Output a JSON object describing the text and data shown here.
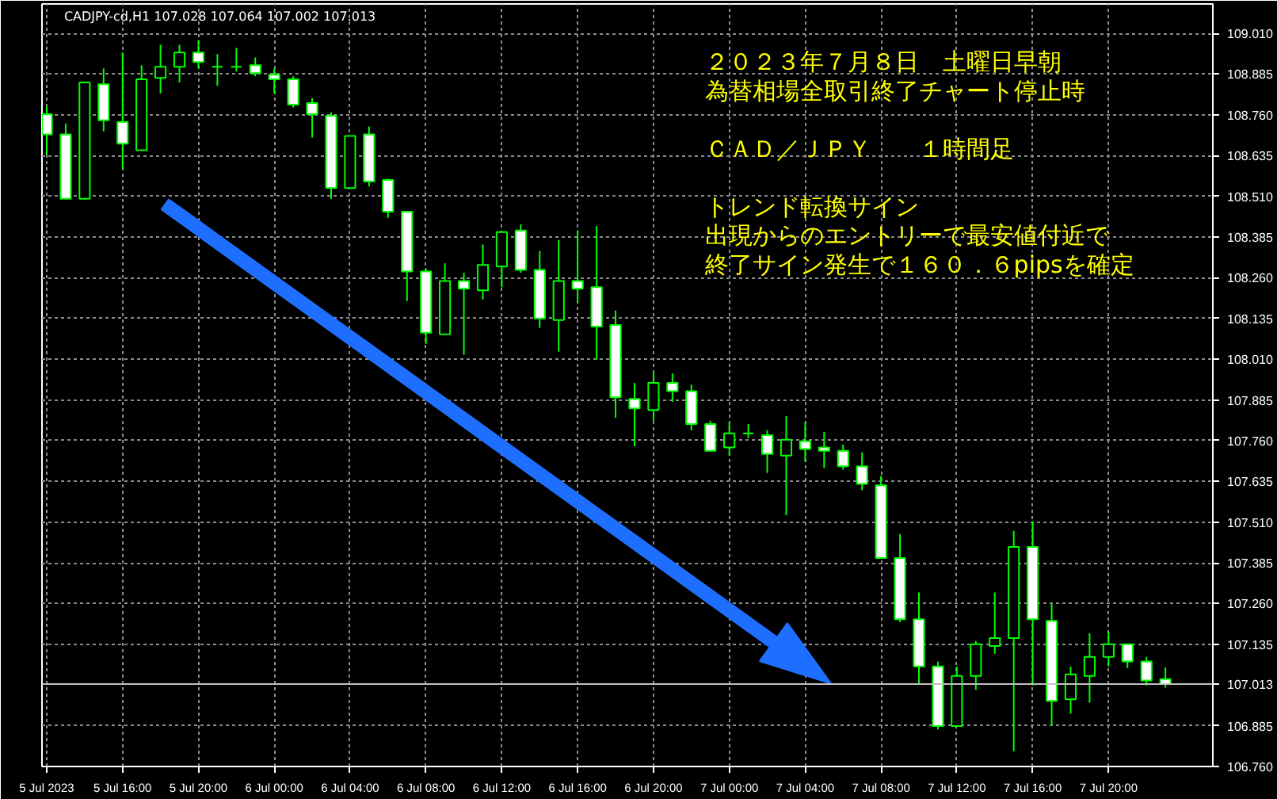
{
  "chart_data": {
    "type": "candlestick",
    "title": "CADJPY-cd,H1  107.028 107.064 107.002 107.013",
    "color": "#00ff00",
    "x": [
      "2023-07-05T12:00",
      "2023-07-05T13:00",
      "2023-07-05T14:00",
      "2023-07-05T15:00",
      "2023-07-05T16:00",
      "2023-07-05T17:00",
      "2023-07-05T18:00",
      "2023-07-05T19:00",
      "2023-07-05T20:00",
      "2023-07-05T21:00",
      "2023-07-05T22:00",
      "2023-07-05T23:00",
      "2023-07-06T00:00",
      "2023-07-06T01:00",
      "2023-07-06T02:00",
      "2023-07-06T03:00",
      "2023-07-06T04:00",
      "2023-07-06T05:00",
      "2023-07-06T06:00",
      "2023-07-06T07:00",
      "2023-07-06T08:00",
      "2023-07-06T09:00",
      "2023-07-06T10:00",
      "2023-07-06T11:00",
      "2023-07-06T12:00",
      "2023-07-06T13:00",
      "2023-07-06T14:00",
      "2023-07-06T15:00",
      "2023-07-06T16:00",
      "2023-07-06T17:00",
      "2023-07-06T18:00",
      "2023-07-06T19:00",
      "2023-07-06T20:00",
      "2023-07-06T21:00",
      "2023-07-06T22:00",
      "2023-07-06T23:00",
      "2023-07-07T00:00",
      "2023-07-07T01:00",
      "2023-07-07T02:00",
      "2023-07-07T03:00",
      "2023-07-07T04:00",
      "2023-07-07T05:00",
      "2023-07-07T06:00",
      "2023-07-07T07:00",
      "2023-07-07T08:00",
      "2023-07-07T09:00",
      "2023-07-07T10:00",
      "2023-07-07T11:00",
      "2023-07-07T12:00",
      "2023-07-07T13:00",
      "2023-07-07T14:00",
      "2023-07-07T15:00",
      "2023-07-07T16:00",
      "2023-07-07T17:00",
      "2023-07-07T18:00",
      "2023-07-07T19:00",
      "2023-07-07T20:00",
      "2023-07-07T21:00",
      "2023-07-07T22:00",
      "2023-07-07T23:00"
    ],
    "ohlc": [
      [
        108.762,
        108.786,
        108.637,
        108.7
      ],
      [
        108.7,
        108.733,
        108.5,
        108.502
      ],
      [
        108.502,
        108.859,
        108.5,
        108.859
      ],
      [
        108.854,
        108.902,
        108.709,
        108.743
      ],
      [
        108.738,
        108.951,
        108.593,
        108.671
      ],
      [
        108.651,
        108.912,
        108.651,
        108.869
      ],
      [
        108.873,
        108.975,
        108.825,
        108.907
      ],
      [
        108.907,
        108.975,
        108.859,
        108.951
      ],
      [
        108.951,
        108.989,
        108.902,
        108.922
      ],
      [
        108.907,
        108.946,
        108.849,
        108.907
      ],
      [
        108.907,
        108.965,
        108.893,
        108.907
      ],
      [
        108.912,
        108.936,
        108.878,
        108.888
      ],
      [
        108.883,
        108.902,
        108.825,
        108.869
      ],
      [
        108.869,
        108.878,
        108.782,
        108.791
      ],
      [
        108.796,
        108.811,
        108.69,
        108.762
      ],
      [
        108.757,
        108.767,
        108.502,
        108.535
      ],
      [
        108.535,
        108.695,
        108.535,
        108.695
      ],
      [
        108.7,
        108.724,
        108.54,
        108.555
      ],
      [
        108.56,
        108.564,
        108.444,
        108.463
      ],
      [
        108.463,
        108.463,
        108.188,
        108.279
      ],
      [
        108.279,
        108.289,
        108.057,
        108.091
      ],
      [
        108.086,
        108.304,
        108.086,
        108.25
      ],
      [
        108.25,
        108.275,
        108.023,
        108.226
      ],
      [
        108.221,
        108.362,
        108.193,
        108.299
      ],
      [
        108.294,
        108.4,
        108.231,
        108.4
      ],
      [
        108.405,
        108.424,
        108.275,
        108.284
      ],
      [
        108.284,
        108.342,
        108.106,
        108.135
      ],
      [
        108.13,
        108.376,
        108.033,
        108.25
      ],
      [
        108.25,
        108.405,
        108.183,
        108.226
      ],
      [
        108.231,
        108.419,
        108.009,
        108.11
      ],
      [
        108.115,
        108.159,
        107.83,
        107.893
      ],
      [
        107.888,
        107.937,
        107.743,
        107.859
      ],
      [
        107.854,
        107.97,
        107.821,
        107.937
      ],
      [
        107.937,
        107.966,
        107.879,
        107.912
      ],
      [
        107.912,
        107.932,
        107.792,
        107.811
      ],
      [
        107.811,
        107.821,
        107.729,
        107.729
      ],
      [
        107.739,
        107.816,
        107.714,
        107.782
      ],
      [
        107.782,
        107.811,
        107.768,
        107.782
      ],
      [
        107.777,
        107.792,
        107.661,
        107.719
      ],
      [
        107.714,
        107.835,
        107.531,
        107.763
      ],
      [
        107.758,
        107.816,
        107.695,
        107.734
      ],
      [
        107.739,
        107.787,
        107.676,
        107.729
      ],
      [
        107.729,
        107.748,
        107.671,
        107.681
      ],
      [
        107.681,
        107.724,
        107.608,
        107.627
      ],
      [
        107.623,
        107.652,
        107.4,
        107.4
      ],
      [
        107.4,
        107.473,
        107.203,
        107.212
      ],
      [
        107.212,
        107.294,
        107.014,
        107.067
      ],
      [
        107.067,
        107.082,
        106.874,
        106.884
      ],
      [
        106.884,
        107.067,
        106.884,
        107.038
      ],
      [
        107.038,
        107.145,
        106.995,
        107.135
      ],
      [
        107.13,
        107.294,
        107.106,
        107.154
      ],
      [
        107.154,
        107.483,
        106.807,
        107.434
      ],
      [
        107.434,
        107.512,
        107.009,
        107.212
      ],
      [
        107.207,
        107.261,
        106.884,
        106.961
      ],
      [
        106.966,
        107.067,
        106.922,
        107.043
      ],
      [
        107.038,
        107.169,
        106.956,
        107.096
      ],
      [
        107.096,
        107.174,
        107.067,
        107.135
      ],
      [
        107.135,
        107.135,
        107.062,
        107.082
      ],
      [
        107.082,
        107.096,
        107.009,
        107.024
      ],
      [
        107.028,
        107.064,
        107.002,
        107.013
      ]
    ],
    "xlim": [
      "2023-07-05T11:45",
      "2023-07-08T01:30"
    ],
    "ylim": [
      106.76,
      109.1
    ],
    "xticks": [
      {
        "value": "2023-07-05T12:00",
        "label": "5 Jul 2023"
      },
      {
        "value": "2023-07-05T16:00",
        "label": "5 Jul 16:00"
      },
      {
        "value": "2023-07-05T20:00",
        "label": "5 Jul 20:00"
      },
      {
        "value": "2023-07-06T00:00",
        "label": "6 Jul 00:00"
      },
      {
        "value": "2023-07-06T04:00",
        "label": "6 Jul 04:00"
      },
      {
        "value": "2023-07-06T08:00",
        "label": "6 Jul 08:00"
      },
      {
        "value": "2023-07-06T12:00",
        "label": "6 Jul 12:00"
      },
      {
        "value": "2023-07-06T16:00",
        "label": "6 Jul 16:00"
      },
      {
        "value": "2023-07-06T20:00",
        "label": "6 Jul 20:00"
      },
      {
        "value": "2023-07-07T00:00",
        "label": "7 Jul 00:00"
      },
      {
        "value": "2023-07-07T04:00",
        "label": "7 Jul 04:00"
      },
      {
        "value": "2023-07-07T08:00",
        "label": "7 Jul 08:00"
      },
      {
        "value": "2023-07-07T12:00",
        "label": "7 Jul 12:00"
      },
      {
        "value": "2023-07-07T16:00",
        "label": "7 Jul 16:00"
      },
      {
        "value": "2023-07-07T20:00",
        "label": "7 Jul 20:00"
      }
    ],
    "yticks": [
      {
        "value": 106.76,
        "label": "106.760"
      },
      {
        "value": 106.885,
        "label": "106.885"
      },
      {
        "value": 107.135,
        "label": "107.135"
      },
      {
        "value": 107.26,
        "label": "107.260"
      },
      {
        "value": 107.385,
        "label": "107.385"
      },
      {
        "value": 107.51,
        "label": "107.510"
      },
      {
        "value": 107.635,
        "label": "107.635"
      },
      {
        "value": 107.76,
        "label": "107.760"
      },
      {
        "value": 107.885,
        "label": "107.885"
      },
      {
        "value": 108.01,
        "label": "108.010"
      },
      {
        "value": 108.135,
        "label": "108.135"
      },
      {
        "value": 108.26,
        "label": "108.260"
      },
      {
        "value": 108.385,
        "label": "108.385"
      },
      {
        "value": 108.51,
        "label": "108.510"
      },
      {
        "value": 108.635,
        "label": "108.635"
      },
      {
        "value": 108.76,
        "label": "108.760"
      },
      {
        "value": 108.885,
        "label": "108.885"
      },
      {
        "value": 109.01,
        "label": "109.010"
      }
    ],
    "grid": true,
    "ref_lines": [
      {
        "axis": "y",
        "value": 107.013,
        "label": "107.013",
        "color": "#c0c0c0"
      }
    ],
    "annotations": [
      "２０２３年７月８日　土曜日早朝",
      "為替相場全取引終了チャート停止時",
      "ＣＡＤ／ＪＰＹ　　１時間足",
      "トレンド転換サイン",
      "出現からのエントリーで最安値付近で",
      "終了サイン発生で１６０．６pipsを確定"
    ]
  }
}
